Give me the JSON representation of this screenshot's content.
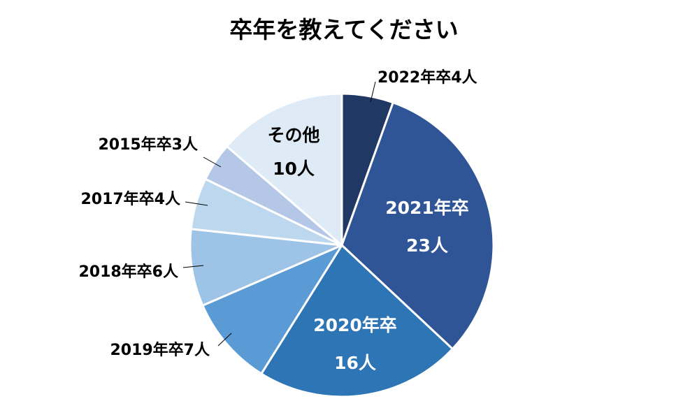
{
  "chart_data": {
    "type": "pie",
    "title": "卒年を教えてください",
    "slices": [
      {
        "label": "2022年卒",
        "value": 4,
        "value_label": "4人",
        "color": "#203864"
      },
      {
        "label": "2021年卒",
        "value": 23,
        "value_label": "23人",
        "color": "#2F5597"
      },
      {
        "label": "2020年卒",
        "value": 16,
        "value_label": "16人",
        "color": "#2E75B6"
      },
      {
        "label": "2019年卒",
        "value": 7,
        "value_label": "7人",
        "color": "#5B9BD5"
      },
      {
        "label": "2018年卒",
        "value": 6,
        "value_label": "6人",
        "color": "#9DC3E6"
      },
      {
        "label": "2017年卒",
        "value": 4,
        "value_label": "4人",
        "color": "#BDD7EE"
      },
      {
        "label": "2015年卒",
        "value": 3,
        "value_label": "3人",
        "color": "#B4C7E7"
      },
      {
        "label": "その他",
        "value": 10,
        "value_label": "10人",
        "color": "#DEEBF7"
      }
    ],
    "start_angle": "12 o'clock",
    "direction": "clockwise",
    "legend": "none"
  }
}
